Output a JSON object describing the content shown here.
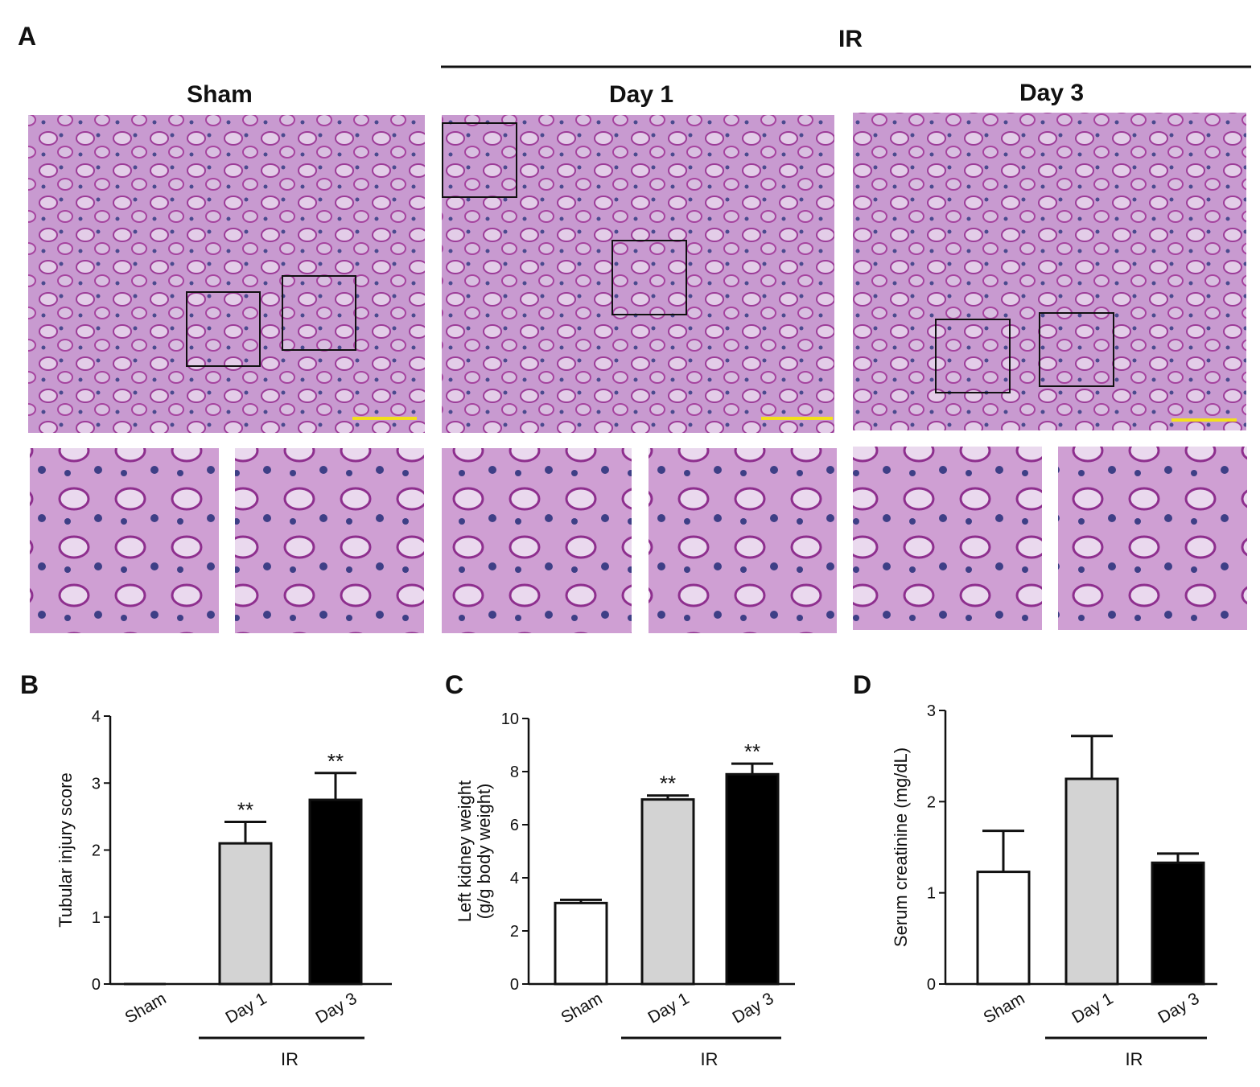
{
  "panel_a": {
    "label": "A",
    "group_label": "IR",
    "columns": [
      "Sham",
      "Day 1",
      "Day 3"
    ]
  },
  "chart_data": [
    {
      "type": "bar",
      "panel_label": "B",
      "ylabel": [
        "Tubular injury score"
      ],
      "categories": [
        "Sham",
        "Day 1",
        "Day 3"
      ],
      "values": [
        0,
        2.1,
        2.75
      ],
      "errors": [
        0,
        0.32,
        0.4
      ],
      "colors": [
        "#ffffff",
        "#d3d3d3",
        "#000000"
      ],
      "significance": [
        null,
        "**",
        "**"
      ],
      "ylim": [
        0,
        4
      ],
      "yticks": [
        0,
        1,
        2,
        3,
        4
      ],
      "group_label": "IR"
    },
    {
      "type": "bar",
      "panel_label": "C",
      "ylabel": [
        "Left kidney weight",
        "(g/g body weight)"
      ],
      "categories": [
        "Sham",
        "Day 1",
        "Day 3"
      ],
      "values": [
        3.05,
        6.95,
        7.9
      ],
      "errors": [
        0.12,
        0.15,
        0.4
      ],
      "colors": [
        "#ffffff",
        "#d3d3d3",
        "#000000"
      ],
      "significance": [
        null,
        "**",
        "**"
      ],
      "ylim": [
        0,
        10
      ],
      "yticks": [
        0,
        2,
        4,
        6,
        8,
        10
      ],
      "group_label": "IR"
    },
    {
      "type": "bar",
      "panel_label": "D",
      "ylabel": [
        "Serum creatinine (mg/dL)"
      ],
      "categories": [
        "Sham",
        "Day 1",
        "Day 3"
      ],
      "values": [
        1.23,
        2.25,
        1.33
      ],
      "errors": [
        0.45,
        0.47,
        0.1
      ],
      "colors": [
        "#ffffff",
        "#d3d3d3",
        "#000000"
      ],
      "significance": [
        null,
        null,
        null
      ],
      "ylim": [
        0,
        3
      ],
      "yticks": [
        0,
        1,
        2,
        3
      ],
      "group_label": "IR"
    }
  ]
}
